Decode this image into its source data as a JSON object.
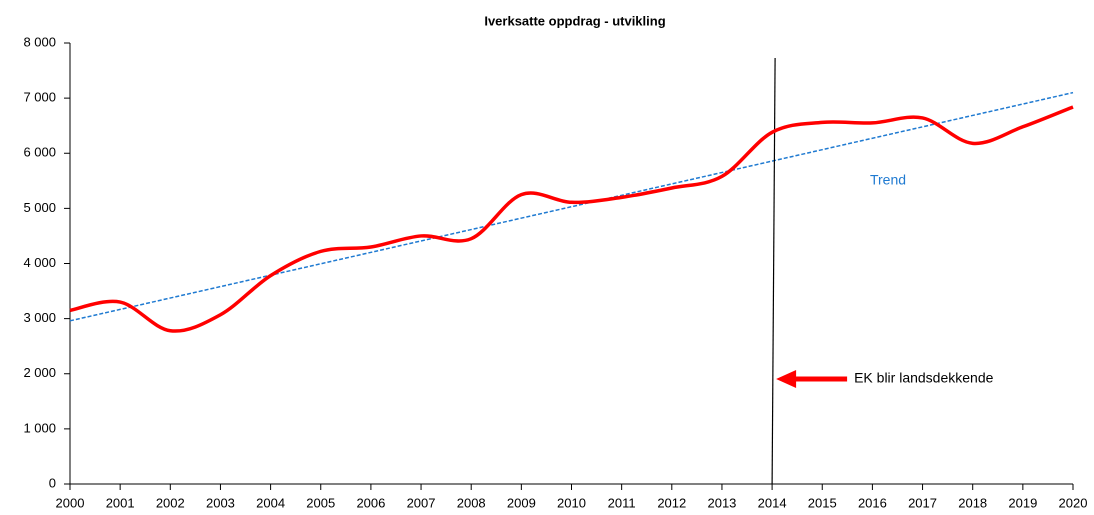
{
  "chart_data": {
    "type": "line",
    "title": "Iverksatte oppdrag - utvikling",
    "x": [
      2000,
      2001,
      2002,
      2003,
      2004,
      2005,
      2006,
      2007,
      2008,
      2009,
      2010,
      2011,
      2012,
      2013,
      2014,
      2015,
      2016,
      2017,
      2018,
      2019,
      2020
    ],
    "series": [
      {
        "color": "#ff0000",
        "values": [
          3150,
          3300,
          2780,
          3070,
          3780,
          4220,
          4300,
          4500,
          4450,
          5250,
          5110,
          5200,
          5370,
          5580,
          6380,
          6560,
          6550,
          6640,
          6180,
          6480,
          6840
        ]
      }
    ],
    "trend": {
      "name": "Trend",
      "color": "#1f7ad1",
      "x": [
        2000,
        2020
      ],
      "values": [
        2960,
        7100
      ]
    },
    "annotation": {
      "text": "EK blir landsdekkende",
      "x": 2014
    },
    "xlim": [
      2000,
      2020
    ],
    "xticks": [
      2000,
      2001,
      2002,
      2003,
      2004,
      2005,
      2006,
      2007,
      2008,
      2009,
      2010,
      2011,
      2012,
      2013,
      2014,
      2015,
      2016,
      2017,
      2018,
      2019,
      2020
    ],
    "ylim": [
      0,
      8000
    ],
    "yticks": [
      {
        "value": 0,
        "label": "0"
      },
      {
        "value": 1000,
        "label": "1 000"
      },
      {
        "value": 2000,
        "label": "2 000"
      },
      {
        "value": 3000,
        "label": "3 000"
      },
      {
        "value": 4000,
        "label": "4 000"
      },
      {
        "value": 5000,
        "label": "5 000"
      },
      {
        "value": 6000,
        "label": "6 000"
      },
      {
        "value": 7000,
        "label": "7 000"
      },
      {
        "value": 8000,
        "label": "8 000"
      }
    ]
  }
}
